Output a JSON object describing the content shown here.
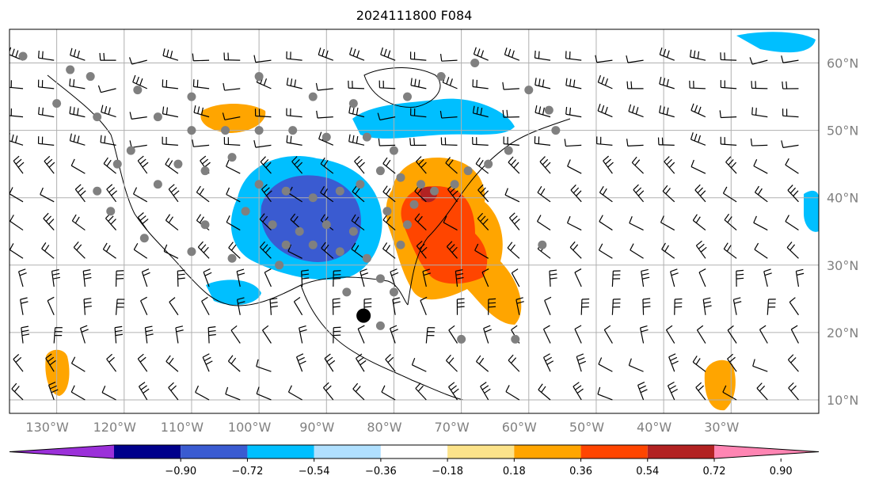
{
  "title": "2024111800 F084",
  "map": {
    "lon_range": [
      -137,
      -17
    ],
    "lat_range": [
      8,
      65
    ],
    "grid_lons": [
      -130,
      -120,
      -110,
      -100,
      -90,
      -80,
      -70,
      -60,
      -50,
      -40,
      -30
    ],
    "grid_lats": [
      10,
      20,
      30,
      40,
      50,
      60
    ],
    "lon_labels": [
      "130°W",
      "120°W",
      "110°W",
      "100°W",
      "90°W",
      "80°W",
      "70°W",
      "60°W",
      "50°W",
      "40°W",
      "30°W"
    ],
    "lat_labels": [
      "10°N",
      "20°N",
      "30°N",
      "40°N",
      "50°N",
      "60°N"
    ],
    "grid_color": "#b0b0b0",
    "label_color": "#808080"
  },
  "colorbar": {
    "tick_labels": [
      "−0.90",
      "−0.72",
      "−0.54",
      "−0.36",
      "−0.18",
      "0.18",
      "0.36",
      "0.54",
      "0.72",
      "0.90"
    ],
    "bins": [
      {
        "color": "#9b30d9"
      },
      {
        "color": "#00008b"
      },
      {
        "color": "#3a5bd1"
      },
      {
        "color": "#00bfff"
      },
      {
        "color": "#b0e0ff"
      },
      {
        "color": "#ffffff"
      },
      {
        "color": "#fce38a"
      },
      {
        "color": "#ffa500"
      },
      {
        "color": "#ff4500"
      },
      {
        "color": "#b22222"
      },
      {
        "color": "#ff85b3"
      }
    ]
  },
  "fields": {
    "negative_light": "#00bfff",
    "negative_mid": "#3a5bd1",
    "positive_mid": "#ffa500",
    "positive_strong": "#ff4500",
    "positive_deep": "#b22222"
  },
  "markers": {
    "point_color": "#808080",
    "points": [
      [
        -135,
        61
      ],
      [
        -128,
        59
      ],
      [
        -124,
        52
      ],
      [
        -119,
        47
      ],
      [
        -115,
        42
      ],
      [
        -112,
        45
      ],
      [
        -108,
        44
      ],
      [
        -104,
        46
      ],
      [
        -100,
        42
      ],
      [
        -96,
        41
      ],
      [
        -92,
        40
      ],
      [
        -88,
        41
      ],
      [
        -85,
        42
      ],
      [
        -82,
        44
      ],
      [
        -79,
        43
      ],
      [
        -76,
        42
      ],
      [
        -74,
        41
      ],
      [
        -71,
        42
      ],
      [
        -69,
        44
      ],
      [
        -66,
        45
      ],
      [
        -63,
        47
      ],
      [
        -80,
        47
      ],
      [
        -84,
        49
      ],
      [
        -90,
        49
      ],
      [
        -95,
        50
      ],
      [
        -100,
        50
      ],
      [
        -105,
        50
      ],
      [
        -110,
        50
      ],
      [
        -115,
        52
      ],
      [
        -98,
        36
      ],
      [
        -96,
        33
      ],
      [
        -94,
        35
      ],
      [
        -92,
        33
      ],
      [
        -90,
        36
      ],
      [
        -88,
        32
      ],
      [
        -86,
        35
      ],
      [
        -84,
        31
      ],
      [
        -82,
        28
      ],
      [
        -80,
        26
      ],
      [
        -97,
        30
      ],
      [
        -104,
        31
      ],
      [
        -110,
        32
      ],
      [
        -117,
        34
      ],
      [
        -122,
        38
      ],
      [
        -124,
        41
      ],
      [
        -121,
        45
      ],
      [
        -108,
        36
      ],
      [
        -102,
        38
      ],
      [
        -79,
        33
      ],
      [
        -78,
        36
      ],
      [
        -81,
        38
      ],
      [
        -77,
        39
      ],
      [
        -87,
        26
      ],
      [
        -82,
        21
      ],
      [
        -70,
        19
      ],
      [
        -62,
        19
      ],
      [
        -58,
        33
      ],
      [
        -56,
        50
      ],
      [
        -57,
        53
      ],
      [
        -60,
        56
      ],
      [
        -68,
        60
      ],
      [
        -73,
        58
      ],
      [
        -78,
        55
      ],
      [
        -86,
        54
      ],
      [
        -92,
        55
      ],
      [
        -100,
        58
      ],
      [
        -110,
        55
      ],
      [
        -118,
        56
      ],
      [
        -130,
        54
      ],
      [
        -125,
        58
      ]
    ],
    "storm_center": [
      -84.5,
      22.5
    ]
  },
  "wind_barbs": {
    "count_note": ""
  }
}
